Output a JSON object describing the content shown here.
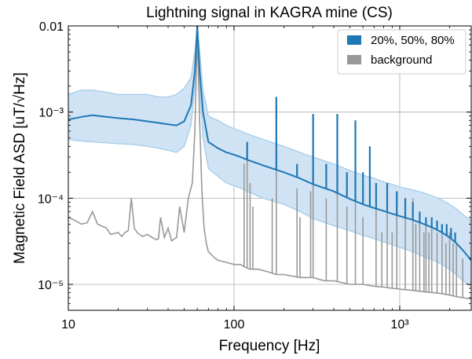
{
  "chart_data": {
    "type": "line",
    "title": "Lightning signal in KAGRA mine (CS)",
    "xlabel": "Frequency [Hz]",
    "ylabel": "Magnetic Field ASD [uT/√Hz]",
    "x_scale": "log",
    "y_scale": "log",
    "xlim": [
      10,
      2700
    ],
    "ylim": [
      5e-06,
      0.01
    ],
    "grid": true,
    "legend_position": "top-right",
    "x_ticks": [
      {
        "value": 10,
        "label": "10"
      },
      {
        "value": 100,
        "label": "100"
      },
      {
        "value": 1000,
        "label": "10³"
      }
    ],
    "y_ticks": [
      {
        "value": 0.01,
        "label": "0.01"
      },
      {
        "value": 0.001,
        "label": "10⁻³"
      },
      {
        "value": 0.0001,
        "label": "10⁻⁴"
      },
      {
        "value": 1e-05,
        "label": "10⁻⁵"
      }
    ],
    "colors": {
      "signal": "#1f77b4",
      "band_fill": "#cfe3f4",
      "band_edge": "#a9cfea",
      "background": "#999999",
      "grid": "#b0b0b0"
    },
    "series": [
      {
        "name": "20%, 50%, 80%",
        "style": "median-with-band",
        "x": [
          10,
          12,
          14,
          17,
          20,
          25,
          30,
          35,
          40,
          45,
          50,
          55,
          58,
          60,
          62,
          65,
          70,
          80,
          90,
          100,
          110,
          120,
          150,
          200,
          250,
          300,
          400,
          500,
          600,
          700,
          800,
          900,
          1000,
          1200,
          1400,
          1600,
          1800,
          2000,
          2200,
          2400,
          2700
        ],
        "values": [
          0.00082,
          0.00088,
          0.00092,
          0.00088,
          0.00085,
          0.00082,
          0.00078,
          0.00075,
          0.00072,
          0.0007,
          0.00078,
          0.0012,
          0.003,
          0.01,
          0.003,
          0.001,
          0.00045,
          0.00038,
          0.00034,
          0.00032,
          0.0003,
          0.00028,
          0.00024,
          0.0002,
          0.00017,
          0.000145,
          0.00012,
          9.8e-05,
          8.5e-05,
          7.7e-05,
          7.1e-05,
          6.6e-05,
          6.2e-05,
          5.6e-05,
          5e-05,
          4.5e-05,
          4e-05,
          3.5e-05,
          3e-05,
          2.5e-05,
          1.9e-05
        ],
        "lower": [
          0.00048,
          0.00046,
          0.00045,
          0.00044,
          0.00043,
          0.00042,
          0.0004,
          0.00038,
          0.00036,
          0.00034,
          0.0004,
          0.0007,
          0.002,
          0.01,
          0.002,
          0.0005,
          0.00022,
          0.00018,
          0.00015,
          0.00014,
          0.00013,
          0.00012,
          0.0001,
          8.5e-05,
          7e-05,
          5.8e-05,
          4.8e-05,
          4.2e-05,
          3.7e-05,
          3.4e-05,
          3.1e-05,
          2.9e-05,
          2.7e-05,
          2.4e-05,
          2.1e-05,
          1.9e-05,
          1.7e-05,
          1.5e-05,
          1.3e-05,
          1.1e-05,
          9.5e-06
        ],
        "upper": [
          0.0016,
          0.0018,
          0.0018,
          0.0017,
          0.0016,
          0.0016,
          0.0016,
          0.0015,
          0.0015,
          0.0016,
          0.0019,
          0.0025,
          0.005,
          0.01,
          0.005,
          0.0018,
          0.0009,
          0.0008,
          0.0007,
          0.00064,
          0.0006,
          0.00056,
          0.00048,
          0.0004,
          0.00034,
          0.0003,
          0.00025,
          0.00021,
          0.000185,
          0.00017,
          0.000155,
          0.000145,
          0.000135,
          0.000125,
          0.000115,
          0.000105,
          9.5e-05,
          8.5e-05,
          7.5e-05,
          6.5e-05,
          5.5e-05
        ],
        "spike_frequencies": [
          120,
          180,
          240,
          300,
          360,
          420,
          480,
          540,
          600,
          660,
          720,
          840,
          960,
          1080,
          1200,
          1320,
          1440,
          1560,
          1680,
          1800,
          1920,
          2040,
          2160
        ],
        "spike_values": [
          0.00045,
          0.0015,
          0.00025,
          0.00095,
          0.00025,
          0.00095,
          0.0002,
          0.0008,
          0.0002,
          0.0004,
          0.00015,
          0.00015,
          0.00012,
          0.0001,
          9e-05,
          7e-05,
          6e-05,
          6e-05,
          5.5e-05,
          5e-05,
          5e-05,
          4.5e-05,
          4e-05
        ]
      },
      {
        "name": "background",
        "x": [
          10,
          11,
          12,
          13,
          14,
          15,
          17,
          18,
          20,
          21,
          22,
          23,
          24,
          25,
          26,
          28,
          30,
          32,
          34,
          35,
          36,
          38,
          40,
          42,
          45,
          47,
          50,
          53,
          56,
          58,
          60,
          62,
          64,
          66,
          68,
          70,
          75,
          80,
          90,
          100,
          110,
          115,
          125,
          140,
          160,
          180,
          200,
          250,
          300,
          350,
          400,
          500,
          600,
          700,
          800,
          900,
          1000,
          1200,
          1400,
          1600,
          1800,
          2000,
          2200,
          2400,
          2700
        ],
        "values": [
          6e-05,
          5.5e-05,
          5e-05,
          5.2e-05,
          7e-05,
          5e-05,
          4.5e-05,
          3.8e-05,
          4e-05,
          3.6e-05,
          4e-05,
          4.2e-05,
          0.0001,
          4.5e-05,
          4e-05,
          3.6e-05,
          3.8e-05,
          3.5e-05,
          3.3e-05,
          3.4e-05,
          6e-05,
          3.5e-05,
          4.5e-05,
          3.2e-05,
          3.5e-05,
          8e-05,
          4e-05,
          0.0001,
          0.00015,
          0.0006,
          0.0085,
          0.0008,
          0.00012,
          4.5e-05,
          3e-05,
          2.4e-05,
          2.1e-05,
          1.9e-05,
          1.8e-05,
          1.7e-05,
          1.7e-05,
          1.6e-05,
          1.5e-05,
          1.5e-05,
          1.4e-05,
          1.3e-05,
          1.3e-05,
          1.2e-05,
          1.2e-05,
          1.1e-05,
          1.1e-05,
          1e-05,
          1e-05,
          9.5e-06,
          9.3e-06,
          9e-06,
          8.8e-06,
          8.5e-06,
          8.2e-06,
          8e-06,
          7.8e-06,
          7.5e-06,
          7.2e-06,
          7e-06,
          6.8e-06
        ],
        "spike_frequencies": [
          115,
          120,
          125,
          130,
          170,
          180,
          240,
          250,
          290,
          300,
          360,
          420,
          480,
          540,
          600,
          720,
          780,
          840,
          900,
          960,
          1080,
          1200,
          1250,
          1320,
          1400,
          1440,
          1500,
          1560,
          1680,
          1800,
          1900,
          2000,
          2100,
          2200,
          2400
        ],
        "spike_values": [
          0.00025,
          0.0004,
          0.00015,
          8e-05,
          0.0001,
          0.0005,
          0.00013,
          6e-05,
          0.00012,
          0.00085,
          0.0001,
          0.0008,
          8e-05,
          0.00065,
          6e-05,
          0.00015,
          4e-05,
          0.00015,
          4e-05,
          0.00012,
          9e-05,
          0.0001,
          5e-05,
          6e-05,
          4e-05,
          5e-05,
          4e-05,
          5e-05,
          4e-05,
          4e-05,
          3e-05,
          4e-05,
          3e-05,
          3e-05,
          2e-05
        ]
      }
    ]
  }
}
